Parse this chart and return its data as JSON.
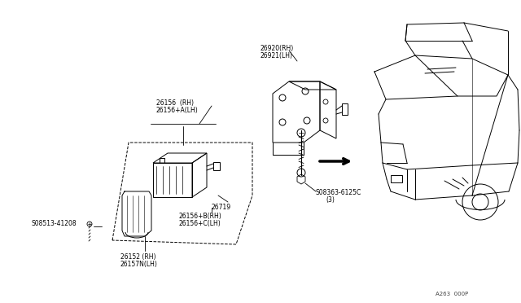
{
  "bg_color": "#ffffff",
  "line_color": "#000000",
  "fig_width": 6.4,
  "fig_height": 3.72,
  "dpi": 100,
  "watermark": "A263  000P",
  "labels": {
    "part_08513": "S08513-41208",
    "part_26156_rh": "26156  (RH)",
    "part_26156_lh": "26156+A(LH)",
    "part_26719": "26719",
    "part_26156b": "26156+B(RH)",
    "part_26156c": "26156+C(LH)",
    "part_26152": "26152 (RH)",
    "part_26157n": "26157N(LH)",
    "part_26920": "26920(RH)",
    "part_26921": "26921(LH)",
    "part_08363": "S08363-6125C",
    "part_08363_qty": "(3)"
  }
}
